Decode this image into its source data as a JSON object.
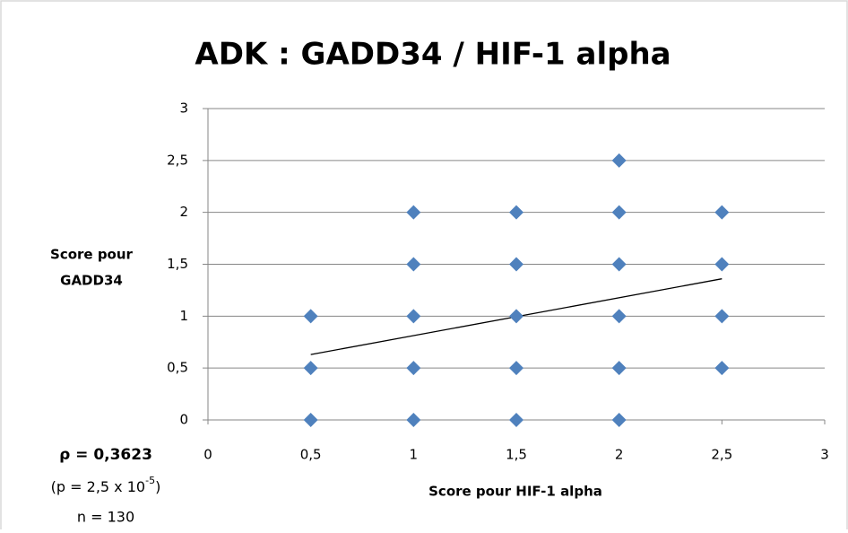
{
  "chart_data": {
    "type": "scatter",
    "title": "ADK : GADD34 / HIF-1 alpha",
    "x_label": "Score pour HIF-1 alpha",
    "y_label": [
      "Score pour",
      "GADD34"
    ],
    "series": [
      {
        "color": "#4f81bd",
        "x": [
          0.5,
          0.5,
          0.5,
          1,
          1,
          1,
          1,
          1,
          1.5,
          1.5,
          1.5,
          1.5,
          1.5,
          2,
          2,
          2,
          2,
          2,
          2,
          2.5,
          2.5,
          2.5,
          2.5
        ],
        "values": [
          0,
          0.5,
          1,
          0,
          0.5,
          1,
          1.5,
          2,
          0,
          0.5,
          1,
          1.5,
          2,
          0,
          0.5,
          1,
          1.5,
          2,
          2.5,
          0.5,
          1,
          1.5,
          2
        ]
      }
    ],
    "trendline": {
      "color": "#000000",
      "x": [
        0.5,
        2.5
      ],
      "values": [
        0.63,
        1.36
      ]
    },
    "xlim": [
      0,
      3
    ],
    "ylim": [
      0,
      3
    ],
    "xticks": [
      0,
      {
        "value": 0.5,
        "label": "0,5"
      },
      1,
      {
        "value": 1.5,
        "label": "1,5"
      },
      2,
      {
        "value": 2.5,
        "label": "2,5"
      },
      3
    ],
    "yticks": [
      0,
      {
        "value": 0.5,
        "label": "0,5"
      },
      1,
      {
        "value": 1.5,
        "label": "1,5"
      },
      2,
      {
        "value": 2.5,
        "label": "2,5"
      },
      3
    ],
    "grid": true,
    "annotations": {
      "rho": "ρ = 0,3623",
      "p_prefix": "(p = 2,5 x 10",
      "p_exp": "-5",
      "p_suffix": ")",
      "n": "n = 130"
    }
  }
}
